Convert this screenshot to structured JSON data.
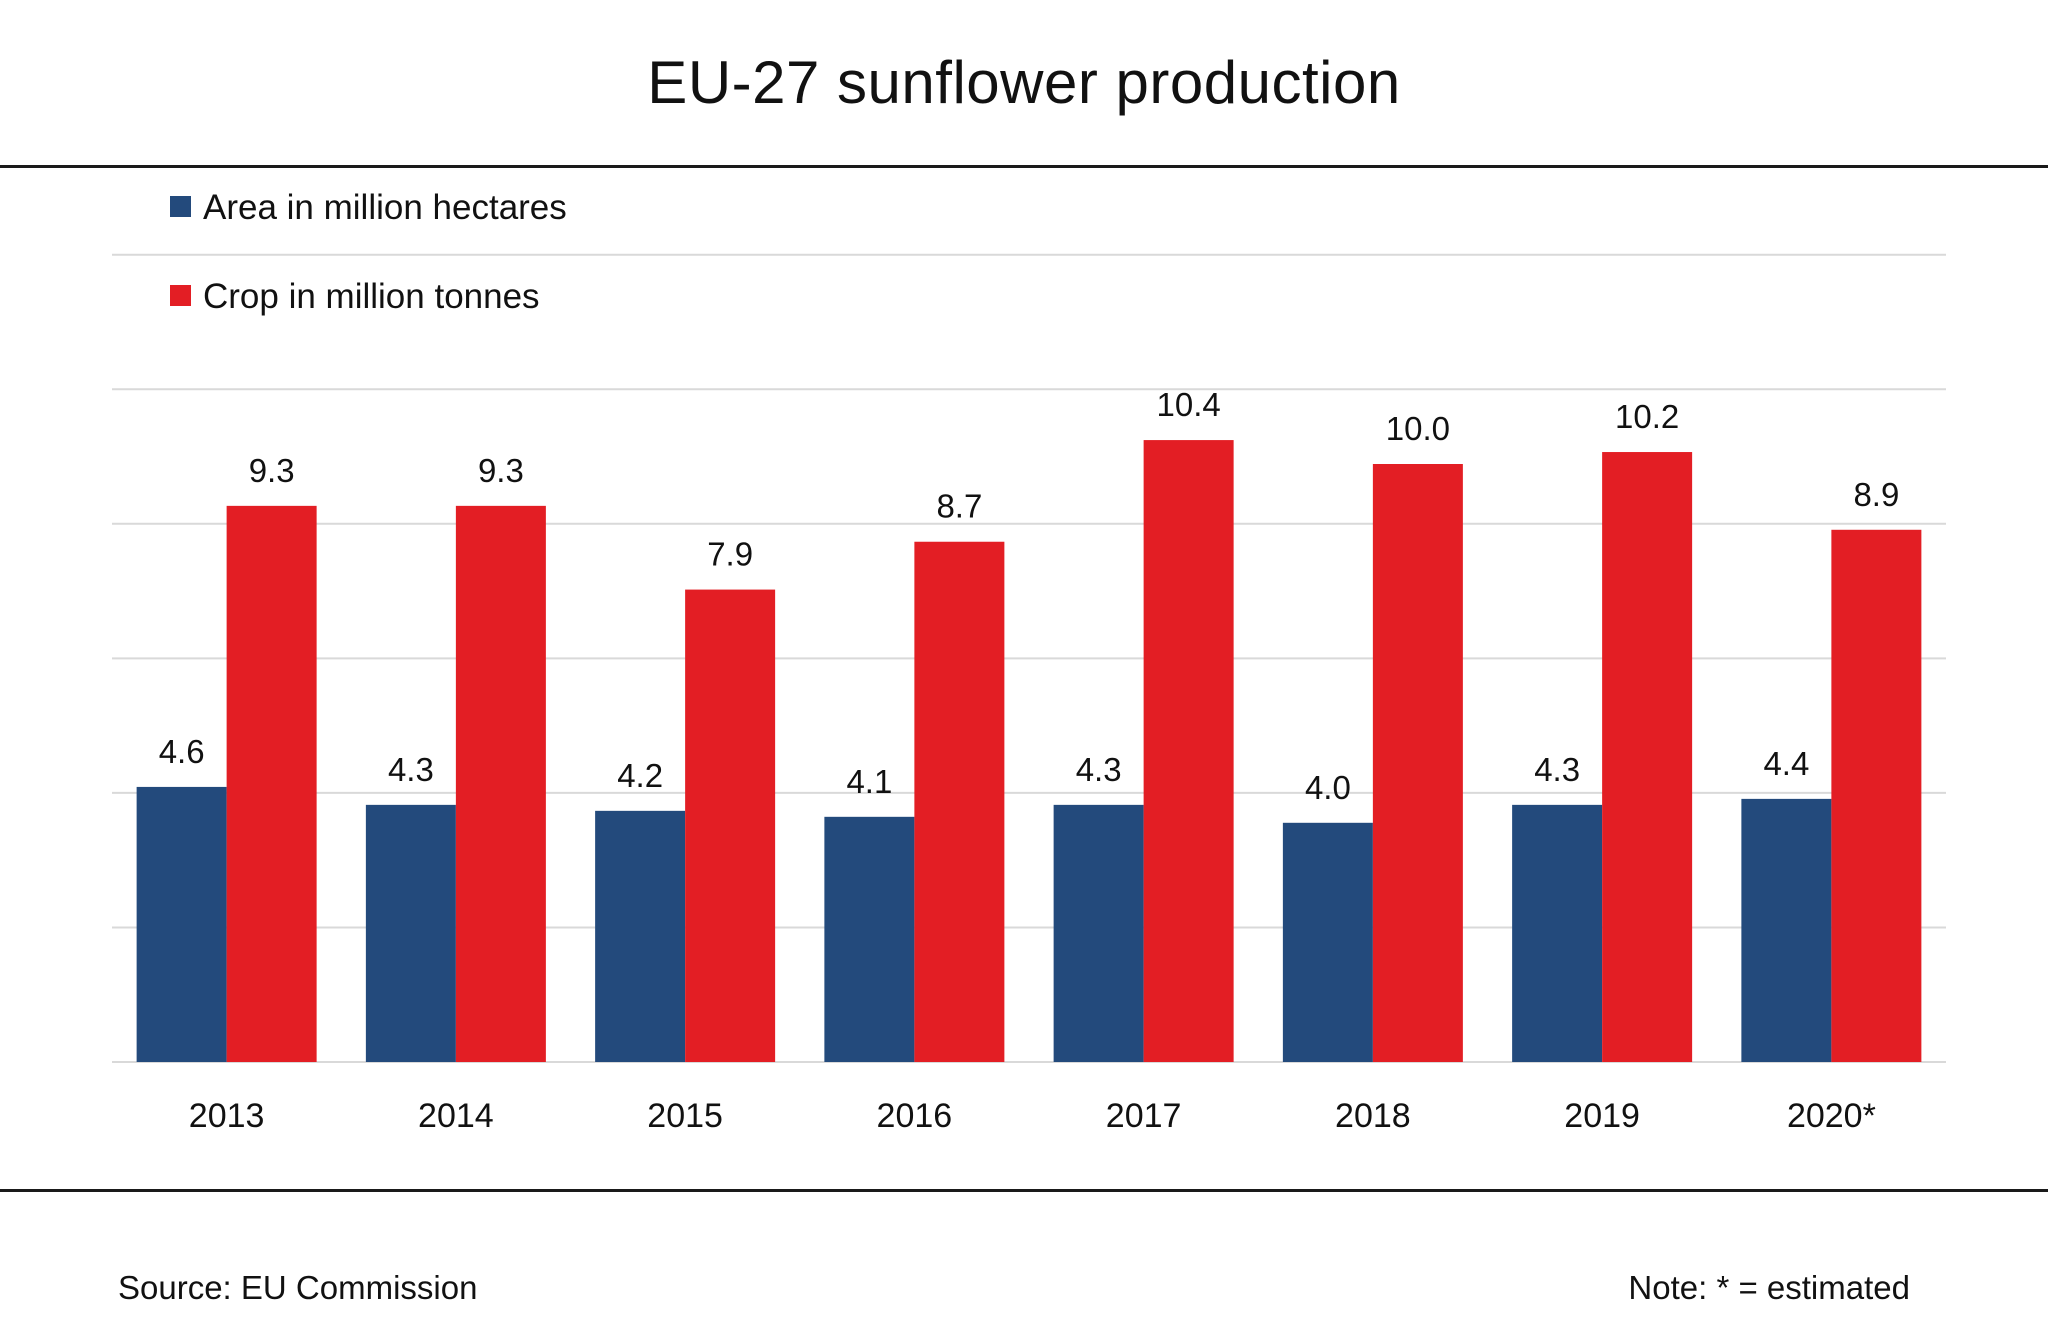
{
  "colors": {
    "area": "#234a7c",
    "crop": "#e31e24",
    "grid": "#d9d9d9",
    "text": "#111111"
  },
  "footer": {
    "source": "Source:  EU Commission",
    "note": "Note: * = estimated"
  },
  "chart_data": {
    "type": "bar",
    "title": "EU-27 sunflower production",
    "xlabel": "",
    "ylabel": "",
    "ylim": [
      0,
      13.5
    ],
    "grid": true,
    "legend_position": "top-left",
    "categories": [
      "2013",
      "2014",
      "2015",
      "2016",
      "2017",
      "2018",
      "2019",
      "2020*"
    ],
    "series": [
      {
        "name": "Area in million hectares",
        "color": "#234a7c",
        "values": [
          4.6,
          4.3,
          4.2,
          4.1,
          4.3,
          4.0,
          4.3,
          4.4
        ],
        "labels": [
          "4.6",
          "4.3",
          "4.2",
          "4.1",
          "4.3",
          "4.0",
          "4.3",
          "4.4"
        ]
      },
      {
        "name": "Crop in million tonnes",
        "color": "#e31e24",
        "values": [
          9.3,
          9.3,
          7.9,
          8.7,
          10.4,
          10.0,
          10.2,
          8.9
        ],
        "labels": [
          "9.3",
          "9.3",
          "7.9",
          "8.7",
          "10.4",
          "10.0",
          "10.2",
          "8.9"
        ]
      }
    ]
  }
}
